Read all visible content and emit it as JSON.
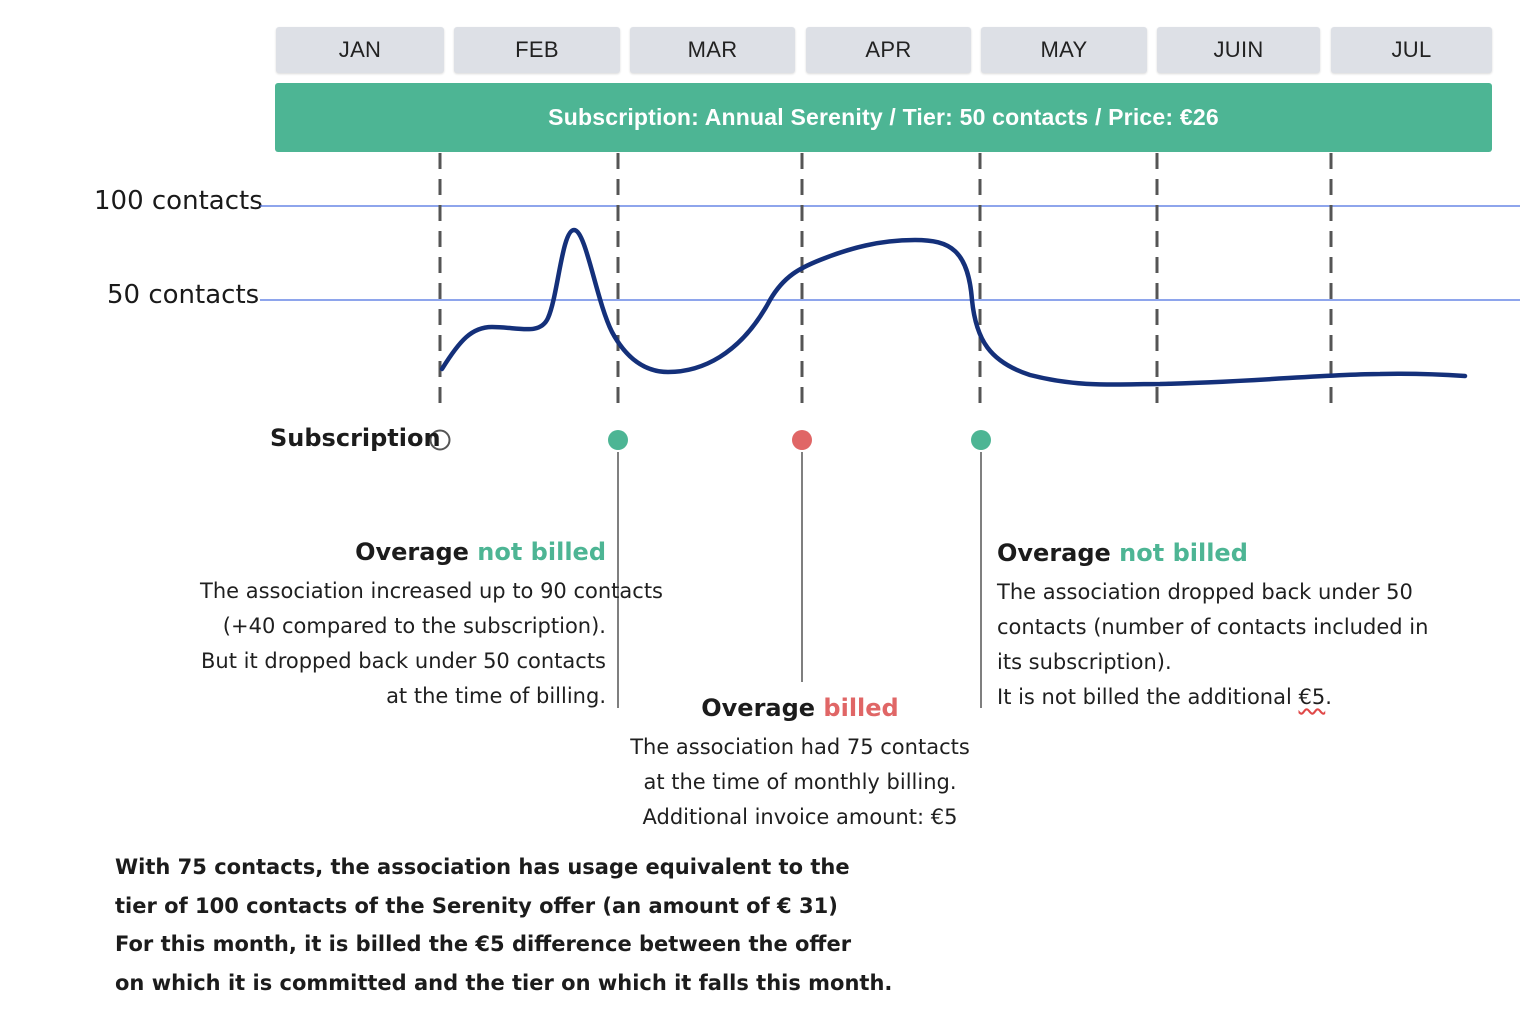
{
  "months": [
    "JAN",
    "FEB",
    "MAR",
    "APR",
    "MAY",
    "JUIN",
    "JUL"
  ],
  "banner": "Subscription: Annual Serenity / Tier: 50 contacts / Price: €26",
  "y_labels": {
    "top": "100 contacts",
    "mid": "50 contacts"
  },
  "subscription_label": "Subscription",
  "colors": {
    "green": "#4db594",
    "red": "#e06666",
    "line": "#14307a",
    "gridline": "#4a6fe0",
    "month_bg": "#dde0e6"
  },
  "markers": [
    {
      "month": "JAN",
      "status": "start"
    },
    {
      "month": "FEB",
      "status": "not-billed"
    },
    {
      "month": "MAR",
      "status": "billed"
    },
    {
      "month": "APR",
      "status": "not-billed"
    }
  ],
  "annotation_feb": {
    "head_prefix": "Overage",
    "head_status": "not billed",
    "lines": [
      "The association increased up to 90 contacts",
      "(+40 compared to the subscription).",
      "But it dropped back under 50 contacts",
      "at the time of billing."
    ]
  },
  "annotation_mar": {
    "head_prefix": "Overage",
    "head_status": "billed",
    "lines": [
      "The association had 75 contacts",
      "at the time of monthly billing.",
      "Additional invoice amount: €5"
    ]
  },
  "annotation_apr": {
    "head_prefix": "Overage",
    "head_status": "not billed",
    "lines": [
      "The association dropped back under 50",
      "contacts (number of contacts included in",
      "its subscription)."
    ],
    "last_line_prefix": "It is not billed the additional ",
    "last_line_amount": "€5",
    "last_line_suffix": "."
  },
  "footer": [
    "With 75 contacts, the association has usage equivalent to the",
    "tier of 100 contacts of the Serenity offer (an amount of € 31)",
    "For this month, it is billed the €5 difference between the offer",
    "on which it is committed and the tier on which it falls this month."
  ],
  "chart_data": {
    "type": "line",
    "series": [
      {
        "points": [
          {
            "month": 0.0,
            "contacts": 5
          },
          {
            "month": 0.3,
            "contacts": 28
          },
          {
            "month": 0.6,
            "contacts": 26
          },
          {
            "month": 0.75,
            "contacts": 45
          },
          {
            "month": 0.8,
            "contacts": 90
          },
          {
            "month": 1.0,
            "contacts": 20
          },
          {
            "month": 1.3,
            "contacts": 4
          },
          {
            "month": 1.7,
            "contacts": 20
          },
          {
            "month": 2.0,
            "contacts": 60
          },
          {
            "month": 2.6,
            "contacts": 82
          },
          {
            "month": 2.95,
            "contacts": 70
          },
          {
            "month": 3.0,
            "contacts": 30
          },
          {
            "month": 3.3,
            "contacts": 0
          },
          {
            "month": 4.0,
            "contacts": -2
          },
          {
            "month": 5.0,
            "contacts": 3
          },
          {
            "month": 5.75,
            "contacts": 3
          }
        ]
      }
    ],
    "reference_lines": [
      100,
      50
    ]
  }
}
